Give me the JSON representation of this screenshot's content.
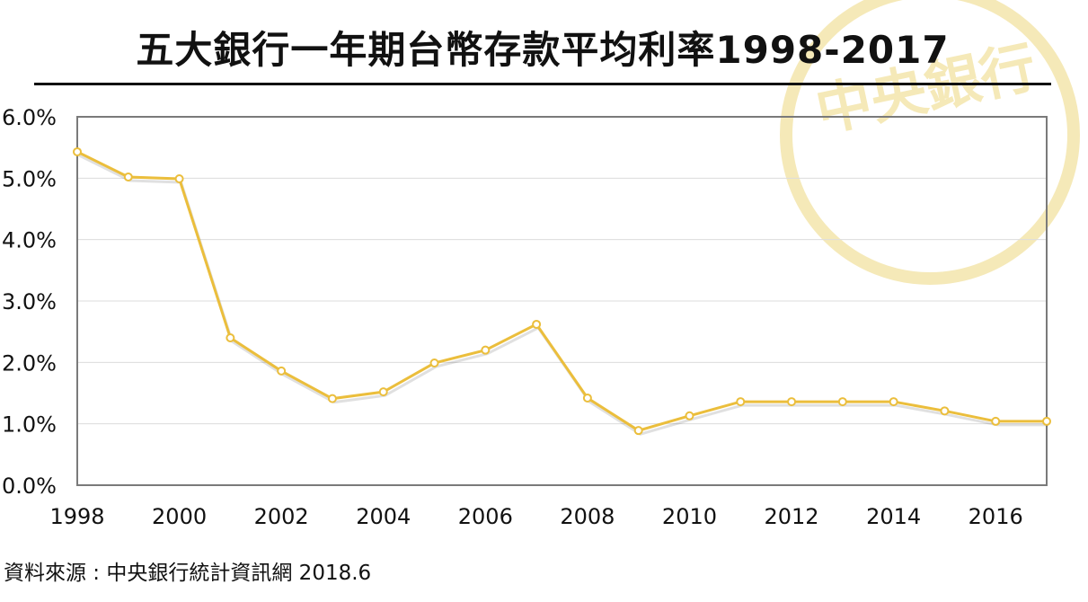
{
  "chart_data": {
    "type": "line",
    "title": "五大銀行一年期台幣存款平均利率1998-2017",
    "xlabel": "",
    "ylabel": "",
    "x": [
      1998,
      1999,
      2000,
      2001,
      2002,
      2003,
      2004,
      2005,
      2006,
      2007,
      2008,
      2009,
      2010,
      2011,
      2012,
      2013,
      2014,
      2015,
      2016,
      2017
    ],
    "series": [
      {
        "values": [
          5.43,
          5.02,
          4.99,
          2.4,
          1.86,
          1.41,
          1.52,
          1.99,
          2.2,
          2.62,
          1.42,
          0.89,
          1.13,
          1.36,
          1.36,
          1.36,
          1.36,
          1.21,
          1.04,
          1.04
        ]
      }
    ],
    "xlim": [
      1998,
      2017
    ],
    "ylim": [
      0,
      6
    ],
    "x_ticks": [
      "1998",
      "2000",
      "2002",
      "2004",
      "2006",
      "2008",
      "2010",
      "2012",
      "2014",
      "2016"
    ],
    "y_ticks": [
      "0.0%",
      "1.0%",
      "2.0%",
      "3.0%",
      "4.0%",
      "5.0%",
      "6.0%"
    ],
    "grid": "horizontal",
    "line_color": "#EBBE3C",
    "marker": "hollow-circle"
  },
  "source": "資料來源 : 中央銀行統計資訊網 2018.6",
  "watermark": {
    "text": "中央銀行",
    "color": "#F5E9B8"
  }
}
